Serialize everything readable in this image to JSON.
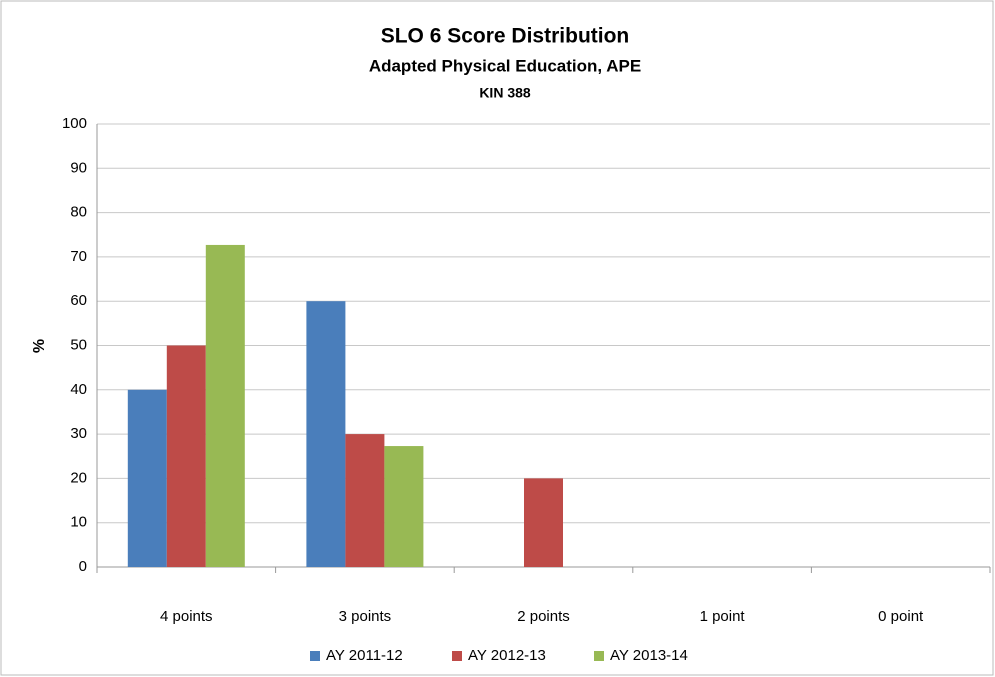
{
  "chart_data": {
    "type": "bar",
    "title": "SLO 6 Score Distribution",
    "subtitle": "Adapted Physical Education, APE",
    "course": "KIN 388",
    "y_label": "%",
    "categories": [
      "4 points",
      "3 points",
      "2 points",
      "1 point",
      "0 point"
    ],
    "series": [
      {
        "name": "AY 2011-12",
        "color": "#4a7ebb",
        "values": [
          40,
          60,
          0,
          0,
          0
        ]
      },
      {
        "name": "AY 2012-13",
        "color": "#be4b48",
        "values": [
          50,
          30,
          20,
          0,
          0
        ]
      },
      {
        "name": "AY 2013-14",
        "color": "#98b954",
        "values": [
          72.7,
          27.3,
          0,
          0,
          0
        ]
      }
    ],
    "ylim": [
      0,
      100
    ],
    "yticks": [
      0,
      10,
      20,
      30,
      40,
      50,
      60,
      70,
      80,
      90,
      100
    ],
    "grid": true,
    "legend": "bottom"
  }
}
